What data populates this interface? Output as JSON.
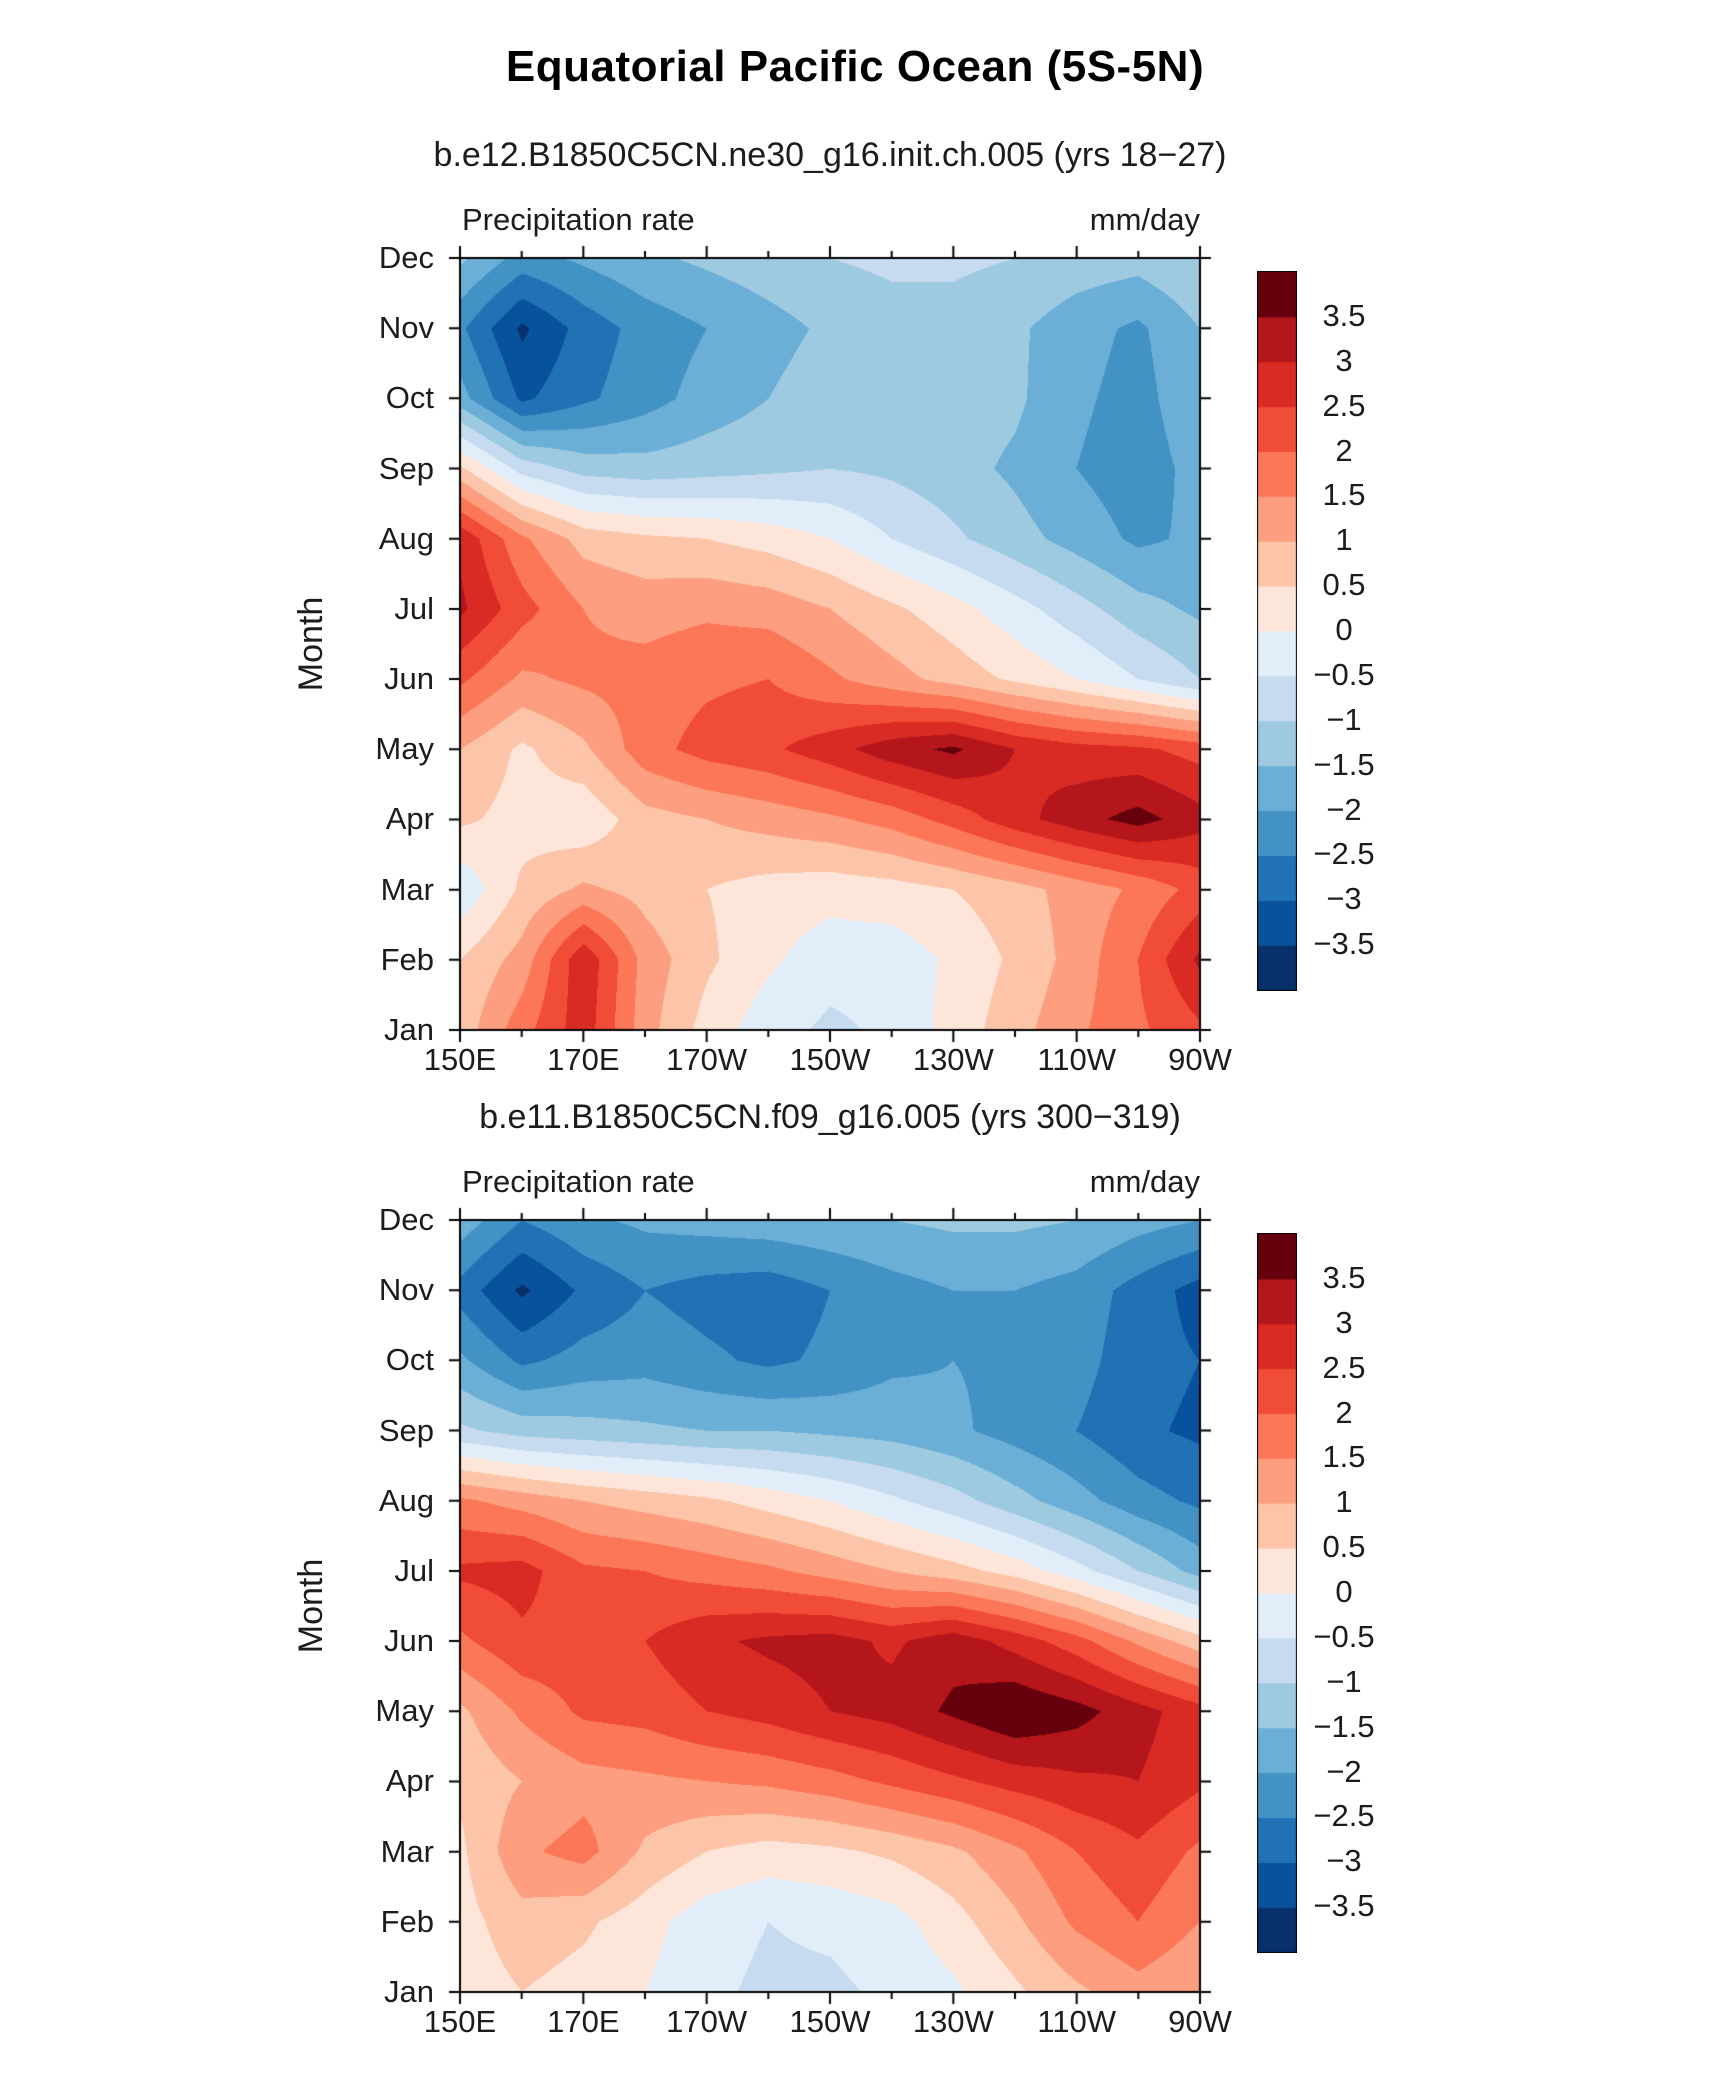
{
  "page": {
    "title": "Equatorial Pacific Ocean (5S-5N)"
  },
  "colors": {
    "axis": "#000000",
    "background": "#FFFFFF",
    "palette_blue_to_red": [
      "#08306B",
      "#08519C",
      "#2171B5",
      "#4292C6",
      "#6BAED6",
      "#9ECAE1",
      "#C6DBEF",
      "#E1EDF8",
      "#FDE6D9",
      "#FCC4A8",
      "#FC9E7F",
      "#FB7757",
      "#F14C38",
      "#D92B23",
      "#B5161B",
      "#67000D"
    ]
  },
  "chart_data": [
    {
      "type": "heatmap",
      "title": "b.e12.B1850C5CN.ne30_g16.init.ch.005 (yrs 18−27)",
      "variable": "Precipitation rate",
      "units": "mm/day",
      "ylabel": "Month",
      "x_tick_labels": [
        "150E",
        "170E",
        "170W",
        "150W",
        "130W",
        "110W",
        "90W"
      ],
      "x_tick_lons_deg_east": [
        150,
        170,
        190,
        210,
        230,
        250,
        270
      ],
      "x_minor_tick_step_deg": 10,
      "x_range_deg_east": [
        150,
        270
      ],
      "lons_deg_east": [
        150,
        160,
        170,
        180,
        190,
        200,
        210,
        220,
        230,
        240,
        250,
        260,
        270
      ],
      "months": [
        "Jan",
        "Feb",
        "Mar",
        "Apr",
        "May",
        "Jun",
        "Jul",
        "Aug",
        "Sep",
        "Oct",
        "Nov",
        "Dec"
      ],
      "levels_mm_per_day": [
        -3.5,
        -3,
        -2.5,
        -2,
        -1.5,
        -1,
        -0.5,
        0,
        0.5,
        1,
        1.5,
        2,
        2.5,
        3,
        3.5
      ],
      "values_mm_per_day_by_month": [
        [
          0.7,
          1.8,
          2.8,
          1.2,
          0.3,
          -0.3,
          -0.6,
          -0.4,
          0.2,
          0.8,
          1.4,
          1.9,
          2.4
        ],
        [
          0.5,
          1.2,
          2.9,
          1.3,
          0.6,
          0.1,
          -0.3,
          -0.3,
          0.1,
          0.6,
          1.2,
          2.0,
          3.1
        ],
        [
          -0.4,
          0.6,
          1.1,
          0.8,
          0.5,
          0.3,
          0.2,
          0.3,
          0.5,
          0.8,
          1.2,
          1.6,
          2.2
        ],
        [
          0.6,
          0.3,
          0.1,
          0.8,
          1.0,
          1.2,
          1.4,
          1.7,
          2.2,
          2.8,
          3.3,
          3.7,
          3.2
        ],
        [
          1.0,
          0.4,
          0.9,
          1.8,
          2.2,
          2.4,
          2.8,
          3.3,
          3.6,
          3.0,
          2.7,
          2.6,
          2.3
        ],
        [
          2.1,
          1.4,
          1.6,
          1.7,
          1.9,
          2.0,
          1.6,
          1.2,
          0.8,
          0.4,
          0.0,
          -0.5,
          -1.0
        ],
        [
          3.1,
          2.2,
          1.5,
          1.3,
          1.4,
          1.3,
          1.0,
          0.6,
          0.2,
          -0.3,
          -0.8,
          -1.3,
          -1.6
        ],
        [
          2.9,
          1.6,
          0.8,
          0.6,
          0.5,
          0.3,
          0.0,
          -0.5,
          -0.9,
          -1.3,
          -1.7,
          -2.1,
          -1.9
        ],
        [
          0.6,
          -0.7,
          -1.2,
          -1.3,
          -1.2,
          -1.1,
          -1.0,
          -1.1,
          -1.3,
          -1.6,
          -2.0,
          -2.3,
          -1.8
        ],
        [
          -1.8,
          -3.1,
          -2.6,
          -2.2,
          -1.8,
          -1.5,
          -1.2,
          -1.1,
          -1.2,
          -1.4,
          -1.9,
          -2.2,
          -1.6
        ],
        [
          -2.4,
          -3.6,
          -2.8,
          -2.3,
          -2.0,
          -1.7,
          -1.4,
          -1.2,
          -1.2,
          -1.4,
          -1.8,
          -2.1,
          -1.5
        ],
        [
          -1.4,
          -2.2,
          -1.9,
          -1.6,
          -1.4,
          -1.2,
          -1.0,
          -0.9,
          -0.9,
          -1.0,
          -1.2,
          -1.3,
          -1.0
        ]
      ]
    },
    {
      "type": "heatmap",
      "title": "b.e11.B1850C5CN.f09_g16.005 (yrs 300−319)",
      "variable": "Precipitation rate",
      "units": "mm/day",
      "ylabel": "Month",
      "x_tick_labels": [
        "150E",
        "170E",
        "170W",
        "150W",
        "130W",
        "110W",
        "90W"
      ],
      "x_tick_lons_deg_east": [
        150,
        170,
        190,
        210,
        230,
        250,
        270
      ],
      "x_minor_tick_step_deg": 10,
      "x_range_deg_east": [
        150,
        270
      ],
      "lons_deg_east": [
        150,
        160,
        170,
        180,
        190,
        200,
        210,
        220,
        230,
        240,
        250,
        260,
        270
      ],
      "months": [
        "Jan",
        "Feb",
        "Mar",
        "Apr",
        "May",
        "Jun",
        "Jul",
        "Aug",
        "Sep",
        "Oct",
        "Nov",
        "Dec"
      ],
      "levels_mm_per_day": [
        -3.5,
        -3,
        -2.5,
        -2,
        -1.5,
        -1,
        -0.5,
        0,
        0.5,
        1,
        1.5,
        2,
        2.5,
        3,
        3.5
      ],
      "values_mm_per_day_by_month": [
        [
          0.2,
          0.5,
          0.3,
          0.0,
          -0.4,
          -0.6,
          -0.6,
          -0.4,
          -0.1,
          0.4,
          0.9,
          1.3,
          1.0
        ],
        [
          0.3,
          0.8,
          0.6,
          0.2,
          -0.3,
          -0.5,
          -0.4,
          -0.2,
          0.3,
          0.9,
          1.6,
          2.0,
          1.5
        ],
        [
          0.4,
          1.4,
          1.7,
          0.9,
          0.5,
          0.3,
          0.4,
          0.6,
          0.9,
          1.4,
          2.0,
          2.4,
          1.9
        ],
        [
          0.6,
          1.0,
          1.3,
          1.4,
          1.5,
          1.6,
          1.8,
          2.1,
          2.4,
          2.7,
          2.9,
          3.0,
          2.6
        ],
        [
          0.9,
          1.6,
          2.1,
          2.2,
          2.5,
          2.7,
          3.0,
          3.2,
          3.6,
          4.0,
          3.7,
          3.2,
          2.7
        ],
        [
          1.9,
          2.4,
          2.3,
          2.5,
          2.9,
          3.1,
          3.2,
          2.9,
          3.3,
          2.8,
          2.2,
          1.4,
          0.7
        ],
        [
          2.6,
          2.7,
          2.1,
          2.0,
          1.8,
          1.6,
          1.3,
          1.0,
          0.7,
          0.3,
          -0.3,
          -1.0,
          -1.7
        ],
        [
          1.6,
          1.3,
          1.0,
          0.8,
          0.6,
          0.3,
          0.0,
          -0.4,
          -0.8,
          -1.3,
          -1.8,
          -2.3,
          -2.6
        ],
        [
          -0.9,
          -1.2,
          -1.3,
          -1.4,
          -1.5,
          -1.5,
          -1.6,
          -1.7,
          -1.9,
          -2.2,
          -2.5,
          -2.9,
          -3.1
        ],
        [
          -1.9,
          -2.6,
          -2.3,
          -2.2,
          -2.4,
          -2.6,
          -2.4,
          -2.1,
          -2.0,
          -2.1,
          -2.3,
          -2.8,
          -3.0
        ],
        [
          -2.7,
          -3.6,
          -2.9,
          -2.5,
          -2.7,
          -2.8,
          -2.5,
          -2.2,
          -2.0,
          -2.0,
          -2.2,
          -2.7,
          -3.2
        ],
        [
          -1.7,
          -2.5,
          -2.1,
          -1.9,
          -1.8,
          -1.7,
          -1.6,
          -1.5,
          -1.4,
          -1.4,
          -1.5,
          -1.8,
          -2.0
        ]
      ]
    }
  ]
}
